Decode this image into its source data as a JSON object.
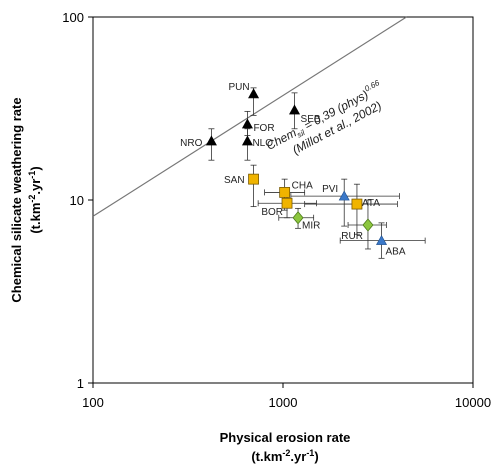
{
  "chart_data": {
    "type": "scatter",
    "title": "",
    "xlabel": "Physical erosion rate",
    "xunit_base": "(t.km",
    "xunit_exp1": "-2",
    "xunit_mid": ".yr",
    "xunit_exp2": "-1",
    "xunit_end": ")",
    "ylabel": "Chemical silicate weathering rate",
    "yunit_base": "(t.km",
    "yunit_exp1": "-2",
    "yunit_mid": ".yr",
    "yunit_exp2": "-1",
    "yunit_end": ")",
    "xscale": "log",
    "yscale": "log",
    "xlim": [
      100,
      10000
    ],
    "ylim": [
      1,
      100
    ],
    "xticks": [
      {
        "value": 100,
        "label": "100"
      },
      {
        "value": 1000,
        "label": "1000"
      },
      {
        "value": 10000,
        "label": "10000"
      }
    ],
    "yticks": [
      {
        "value": 1,
        "label": "1"
      },
      {
        "value": 10,
        "label": "10"
      },
      {
        "value": 100,
        "label": "100"
      }
    ],
    "grid": false,
    "fit_line": {
      "coefficient": 0.39,
      "exponent": 0.66,
      "label_main": "Chem",
      "label_sub": "sil",
      "label_rest": " = 0,39 (phys)",
      "label_exp": "0.66",
      "citation": "(Millot et al., 2002)",
      "color": "#777777"
    },
    "series": [
      {
        "marker": "triangle",
        "color": "#000000",
        "points": [
          {
            "label": "NRO",
            "x": 420,
            "y": 21,
            "yerr": [
              16.5,
              24.5
            ]
          },
          {
            "label": "PUN",
            "x": 700,
            "y": 38,
            "yerr": [
              29,
              41
            ]
          },
          {
            "label": "FOR",
            "x": 650,
            "y": 26,
            "yerr": [
              22.5,
              30.5
            ]
          },
          {
            "label": "NLO",
            "x": 650,
            "y": 21,
            "yerr": [
              16.5,
              24.5
            ]
          },
          {
            "label": "SEB",
            "x": 1150,
            "y": 31,
            "yerr": [
              24.5,
              38.5
            ]
          }
        ]
      },
      {
        "marker": "square",
        "color": "#f0b400",
        "points": [
          {
            "label": "SAN",
            "x": 700,
            "y": 13,
            "yerr": [
              9.2,
              15.5
            ]
          },
          {
            "label": "CHA",
            "x": 1020,
            "y": 11,
            "yerr": [
              8.8,
              13
            ],
            "xerr": [
              800,
              1300
            ]
          },
          {
            "label": "BOR",
            "x": 1050,
            "y": 9.6,
            "yerr": [
              8,
              11.5
            ],
            "xerr": [
              740,
              1500
            ]
          },
          {
            "label": "ATA",
            "x": 2450,
            "y": 9.5,
            "yerr": [
              6.5,
              12.2
            ],
            "xerr": [
              1300,
              4000
            ]
          }
        ]
      },
      {
        "marker": "triangle",
        "color": "#3a78c8",
        "points": [
          {
            "label": "PVI",
            "x": 2100,
            "y": 10.5,
            "yerr": [
              7.2,
              13
            ],
            "xerr": [
              1100,
              4100
            ]
          },
          {
            "label": "ABA",
            "x": 3300,
            "y": 6,
            "yerr": [
              4.8,
              7.5
            ],
            "xerr": [
              2000,
              5600
            ]
          }
        ]
      },
      {
        "marker": "diamond",
        "color": "#8cc63e",
        "points": [
          {
            "label": "MIR",
            "x": 1200,
            "y": 8,
            "yerr": [
              7,
              9
            ],
            "xerr": [
              950,
              1450
            ]
          },
          {
            "label": "RUR",
            "x": 2800,
            "y": 7.3,
            "yerr": [
              5.4,
              10
            ],
            "xerr": [
              2200,
              3500
            ]
          }
        ]
      }
    ]
  }
}
